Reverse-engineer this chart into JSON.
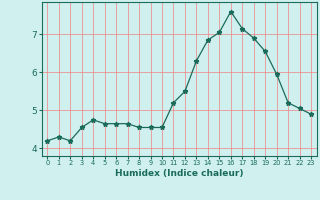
{
  "x": [
    0,
    1,
    2,
    3,
    4,
    5,
    6,
    7,
    8,
    9,
    10,
    11,
    12,
    13,
    14,
    15,
    16,
    17,
    18,
    19,
    20,
    21,
    22,
    23
  ],
  "y": [
    4.2,
    4.3,
    4.2,
    4.55,
    4.75,
    4.65,
    4.65,
    4.65,
    4.55,
    4.55,
    4.55,
    5.2,
    5.5,
    6.3,
    6.85,
    7.05,
    7.6,
    7.15,
    6.9,
    6.55,
    5.95,
    5.2,
    5.05,
    4.9
  ],
  "xlabel": "Humidex (Indice chaleur)",
  "line_color": "#1a6b5a",
  "marker": "*",
  "bg_color": "#d0f0f0",
  "grid_color": "#f08080",
  "xlim": [
    -0.5,
    23.5
  ],
  "ylim": [
    3.8,
    7.85
  ],
  "yticks": [
    4,
    5,
    6,
    7
  ],
  "xtick_labels": [
    "0",
    "1",
    "2",
    "3",
    "4",
    "5",
    "6",
    "7",
    "8",
    "9",
    "10",
    "11",
    "12",
    "13",
    "14",
    "15",
    "16",
    "17",
    "18",
    "19",
    "20",
    "21",
    "22",
    "23"
  ]
}
